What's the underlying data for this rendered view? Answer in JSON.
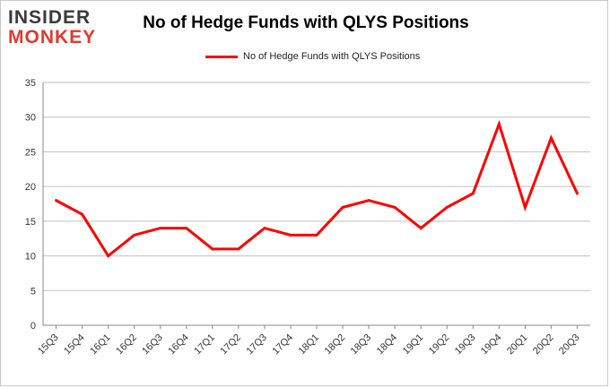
{
  "logo": {
    "top": "INSIDER",
    "bottom": "MONKEY"
  },
  "chart_data": {
    "type": "line",
    "title": "No of Hedge Funds with QLYS Positions",
    "categories": [
      "15Q3",
      "15Q4",
      "16Q1",
      "16Q2",
      "16Q3",
      "16Q4",
      "17Q1",
      "17Q2",
      "17Q3",
      "17Q4",
      "18Q1",
      "18Q2",
      "18Q3",
      "18Q4",
      "19Q1",
      "19Q2",
      "19Q3",
      "19Q4",
      "20Q1",
      "20Q2",
      "20Q3"
    ],
    "series": [
      {
        "name": "No of Hedge Funds with QLYS Positions",
        "values": [
          18,
          16,
          10,
          13,
          14,
          14,
          11,
          11,
          14,
          13,
          13,
          17,
          18,
          17,
          14,
          17,
          19,
          29,
          17,
          27,
          19
        ]
      }
    ],
    "ylim": [
      0,
      35
    ],
    "yticks": [
      0,
      5,
      10,
      15,
      20,
      25,
      30,
      35
    ],
    "grid": true,
    "legend": "top-center",
    "colors": {
      "line": "#ff0000",
      "grid": "#c0c0c0",
      "axis": "#888888"
    }
  }
}
